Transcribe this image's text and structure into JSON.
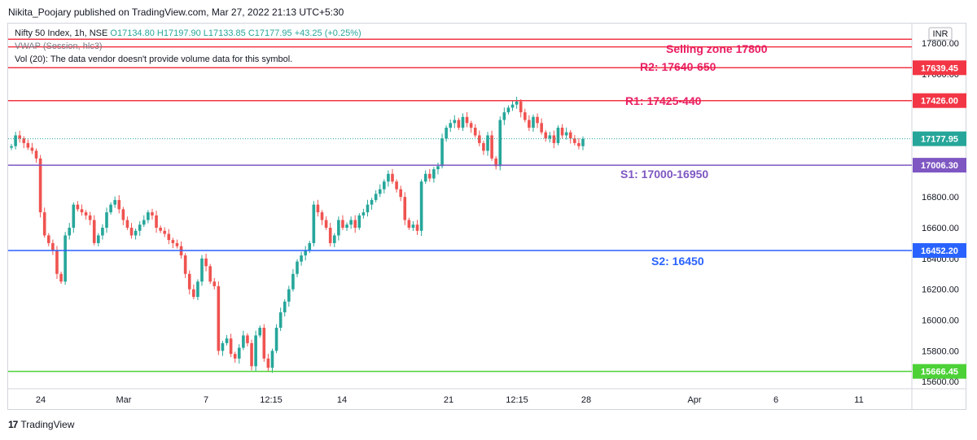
{
  "header": {
    "published": "Nikita_Poojary published on TradingView.com, Mar 27, 2022 21:13 UTC+5:30"
  },
  "legend": {
    "symbol": "Nifty 50 Index, 1h, NSE",
    "ohlc": "O17134.80 H17197.90 L17133.85 C17177.95 +43.25 (+0.25%)",
    "vwap": "VWAP (Session, hlc3)",
    "vol": "Vol (20): The data vendor doesn't provide volume data for this symbol."
  },
  "currency": "INR",
  "footer": {
    "logo_text": "TradingView",
    "icon": "tradingview-logo-icon"
  },
  "colors": {
    "up": "#26a69a",
    "down": "#ef5350",
    "red_line": "#f23645",
    "purple": "#7e57c2",
    "blue": "#2962ff",
    "green": "#4cd137",
    "zone_text": "#e91e63"
  },
  "chart_data": {
    "type": "candlestick",
    "symbol": "Nifty 50 Index, 1h, NSE",
    "ylim": [
      15580,
      17900
    ],
    "y_ticks": [
      17800,
      17600,
      17400,
      17200,
      16800,
      16600,
      16400,
      16200,
      16000,
      15800,
      15600
    ],
    "x_ticks": [
      "24",
      "Mar",
      "7",
      "12:15",
      "14",
      "21",
      "12:15",
      "28",
      "Apr",
      "6",
      "11"
    ],
    "last_price": 17177.95,
    "last_price_label": "17177.95",
    "horizontal_levels": [
      {
        "name": "selling-zone-line-1",
        "value": 17825,
        "color": "#f23645",
        "label": "",
        "price_tag": ""
      },
      {
        "name": "selling-zone-line-2",
        "value": 17775,
        "color": "#f23645",
        "label": "Selling zone 17800",
        "price_tag": ""
      },
      {
        "name": "r2-line",
        "value": 17639.45,
        "color": "#f23645",
        "label": "R2: 17640-650",
        "price_tag": "17639.45"
      },
      {
        "name": "r1-line",
        "value": 17426.0,
        "color": "#f23645",
        "label": "R1: 17425-440",
        "price_tag": "17426.00"
      },
      {
        "name": "s1-line",
        "value": 17006.3,
        "color": "#7e57c2",
        "label": "S1: 17000-16950",
        "price_tag": "17006.30"
      },
      {
        "name": "s2-line",
        "value": 16452.2,
        "color": "#2962ff",
        "label": "S2: 16450",
        "price_tag": "16452.20"
      },
      {
        "name": "support-line",
        "value": 15666.45,
        "color": "#4cd137",
        "label": "",
        "price_tag": "15666.45"
      }
    ],
    "closes": [
      17130,
      17200,
      17180,
      17150,
      17120,
      17100,
      17050,
      16700,
      16550,
      16500,
      16450,
      16300,
      16250,
      16550,
      16600,
      16750,
      16720,
      16700,
      16680,
      16650,
      16500,
      16550,
      16600,
      16700,
      16750,
      16780,
      16720,
      16650,
      16600,
      16550,
      16580,
      16620,
      16650,
      16700,
      16680,
      16600,
      16580,
      16560,
      16520,
      16500,
      16480,
      16420,
      16300,
      16200,
      16150,
      16250,
      16400,
      16350,
      16250,
      16220,
      15800,
      15850,
      15880,
      15780,
      15750,
      15820,
      15900,
      15850,
      15700,
      15900,
      15950,
      15750,
      15690,
      15800,
      15950,
      16050,
      16120,
      16200,
      16300,
      16380,
      16420,
      16450,
      16500,
      16750,
      16700,
      16650,
      16600,
      16500,
      16550,
      16650,
      16600,
      16620,
      16650,
      16600,
      16680,
      16700,
      16750,
      16780,
      16820,
      16850,
      16900,
      16950,
      16900,
      16850,
      16800,
      16650,
      16600,
      16620,
      16580,
      16900,
      16950,
      16920,
      16980,
      17000,
      17180,
      17250,
      17280,
      17300,
      17250,
      17320,
      17280,
      17250,
      17200,
      17150,
      17100,
      17200,
      17050,
      17000,
      17300,
      17350,
      17380,
      17400,
      17420,
      17350,
      17300,
      17250,
      17320,
      17280,
      17220,
      17180,
      17200,
      17150,
      17250,
      17200,
      17220,
      17180,
      17150,
      17130,
      17177.95
    ]
  }
}
